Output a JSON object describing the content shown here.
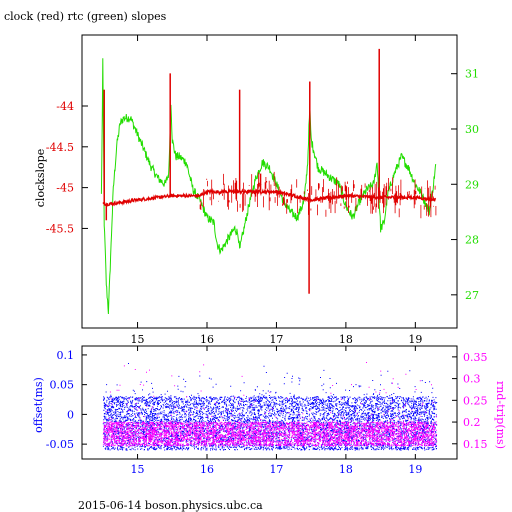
{
  "title": "clock (red) rtc (green) slopes",
  "footer": "2015-06-14 boson.physics.ubc.ca",
  "colors": {
    "red": "#e00000",
    "green": "#22dd00",
    "blue": "#0000ff",
    "magenta": "#ff00ff",
    "frame": "#000000"
  },
  "chart_data": [
    {
      "type": "line",
      "title": "clock (red) rtc (green) slopes",
      "xlim": [
        14.2,
        19.6
      ],
      "x_ticks": [
        "15",
        "16",
        "17",
        "18",
        "19"
      ],
      "ylabel": "clockslope",
      "ylim": [
        -46.72,
        -43.13
      ],
      "y_ticks": [
        "-44",
        "-44.5",
        "-45",
        "-45.5"
      ],
      "y_tick_values": [
        -44,
        -44.5,
        -45,
        -45.5
      ],
      "y2lim": [
        26.4,
        31.7
      ],
      "y2_ticks": [
        "31",
        "30",
        "29",
        "28",
        "27"
      ],
      "y2_tick_values": [
        31,
        30,
        29,
        28,
        27
      ],
      "series": [
        {
          "name": "clock",
          "axis": "left",
          "color": "red",
          "baseline": [
            [
              14.5,
              -45.2
            ],
            [
              14.6,
              -45.2
            ],
            [
              15.0,
              -45.15
            ],
            [
              15.5,
              -45.1
            ],
            [
              15.9,
              -45.1
            ],
            [
              16.0,
              -45.05
            ],
            [
              16.5,
              -45.05
            ],
            [
              17.0,
              -45.05
            ],
            [
              17.5,
              -45.15
            ],
            [
              18.0,
              -45.1
            ],
            [
              18.5,
              -45.12
            ],
            [
              19.0,
              -45.12
            ],
            [
              19.3,
              -45.15
            ]
          ],
          "spikes": [
            [
              14.52,
              -43.8
            ],
            [
              14.55,
              -45.4
            ],
            [
              15.47,
              -43.6
            ],
            [
              16.47,
              -43.8
            ],
            [
              17.47,
              -46.3
            ],
            [
              17.48,
              -43.7
            ],
            [
              18.48,
              -43.3
            ]
          ],
          "noise_range": [
            15.9,
            19.3
          ],
          "noise_amplitude": 0.25
        },
        {
          "name": "rtc",
          "axis": "right",
          "color": "green",
          "points": [
            [
              14.48,
              28.8
            ],
            [
              14.5,
              31.2
            ],
            [
              14.52,
              28.3
            ],
            [
              14.55,
              27.2
            ],
            [
              14.58,
              26.7
            ],
            [
              14.6,
              27.3
            ],
            [
              14.65,
              28.9
            ],
            [
              14.7,
              29.7
            ],
            [
              14.75,
              30.1
            ],
            [
              14.8,
              30.2
            ],
            [
              14.9,
              30.2
            ],
            [
              15.0,
              29.9
            ],
            [
              15.1,
              29.6
            ],
            [
              15.2,
              29.3
            ],
            [
              15.3,
              29.1
            ],
            [
              15.4,
              29.0
            ],
            [
              15.45,
              29.2
            ],
            [
              15.48,
              30.5
            ],
            [
              15.5,
              29.8
            ],
            [
              15.55,
              29.5
            ],
            [
              15.6,
              29.5
            ],
            [
              15.7,
              29.4
            ],
            [
              15.8,
              28.9
            ],
            [
              15.9,
              28.7
            ],
            [
              16.0,
              28.4
            ],
            [
              16.1,
              28.3
            ],
            [
              16.15,
              27.9
            ],
            [
              16.2,
              27.8
            ],
            [
              16.3,
              28.0
            ],
            [
              16.4,
              28.2
            ],
            [
              16.45,
              28.1
            ],
            [
              16.47,
              27.8
            ],
            [
              16.5,
              28.0
            ],
            [
              16.6,
              28.6
            ],
            [
              16.7,
              29.1
            ],
            [
              16.8,
              29.4
            ],
            [
              16.9,
              29.3
            ],
            [
              17.0,
              29.0
            ],
            [
              17.1,
              28.7
            ],
            [
              17.2,
              28.5
            ],
            [
              17.3,
              28.4
            ],
            [
              17.4,
              28.7
            ],
            [
              17.45,
              29.4
            ],
            [
              17.48,
              30.4
            ],
            [
              17.5,
              29.8
            ],
            [
              17.6,
              29.3
            ],
            [
              17.7,
              29.2
            ],
            [
              17.8,
              29.1
            ],
            [
              17.9,
              29.0
            ],
            [
              18.0,
              28.6
            ],
            [
              18.1,
              28.4
            ],
            [
              18.2,
              28.7
            ],
            [
              18.3,
              28.9
            ],
            [
              18.4,
              29.0
            ],
            [
              18.45,
              29.4
            ],
            [
              18.5,
              28.2
            ],
            [
              18.55,
              28.3
            ],
            [
              18.6,
              28.8
            ],
            [
              18.7,
              29.2
            ],
            [
              18.8,
              29.5
            ],
            [
              18.9,
              29.3
            ],
            [
              19.0,
              29.0
            ],
            [
              19.1,
              28.8
            ],
            [
              19.2,
              28.5
            ],
            [
              19.25,
              28.9
            ],
            [
              19.3,
              29.4
            ]
          ],
          "noise_amplitude": 0.08
        }
      ]
    },
    {
      "type": "scatter",
      "xlim": [
        14.2,
        19.6
      ],
      "x_ticks": [
        "15",
        "16",
        "17",
        "18",
        "19"
      ],
      "ylabel": "offset(ms)",
      "ylim": [
        -0.075,
        0.115
      ],
      "y_ticks": [
        "0.1",
        "0.05",
        "0",
        "-0.05"
      ],
      "y_tick_values": [
        0.1,
        0.05,
        0,
        -0.05
      ],
      "y2label": "rnd-trip(ms)",
      "y2lim": [
        0.115,
        0.375
      ],
      "y2_ticks": [
        "0.35",
        "0.3",
        "0.25",
        "0.2",
        "0.15"
      ],
      "y2_tick_values": [
        0.35,
        0.3,
        0.25,
        0.2,
        0.15
      ],
      "x_range": [
        14.5,
        19.3
      ],
      "series": [
        {
          "name": "offset",
          "axis": "left",
          "color": "blue",
          "band": [
            -0.06,
            0.03
          ],
          "outlier_max": 0.1
        },
        {
          "name": "rnd-trip",
          "axis": "right",
          "color": "magenta",
          "band": [
            0.145,
            0.2
          ],
          "outlier_max": 0.35
        }
      ]
    }
  ]
}
